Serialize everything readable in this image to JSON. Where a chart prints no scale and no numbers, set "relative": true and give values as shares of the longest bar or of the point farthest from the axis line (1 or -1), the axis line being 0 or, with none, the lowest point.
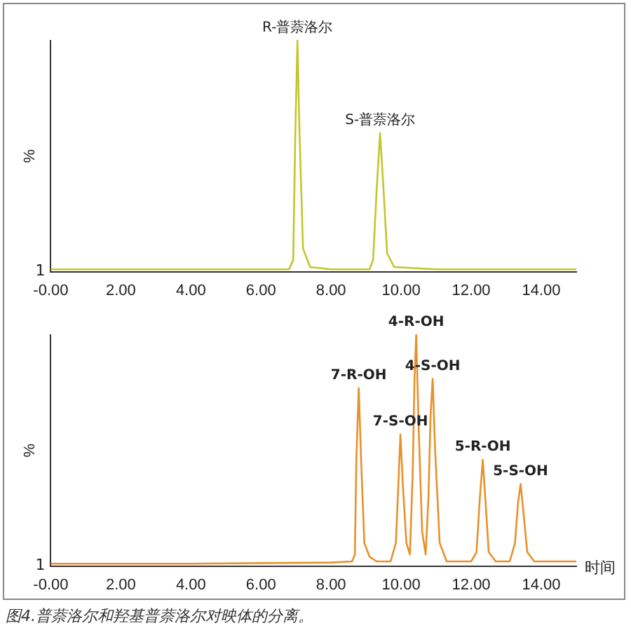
{
  "chart_data": [
    {
      "type": "line",
      "relative": true,
      "ylabel": "%",
      "xlim": [
        0,
        15
      ],
      "xticks": [
        {
          "value": 0,
          "label": "-0.00"
        },
        {
          "value": 2,
          "label": "2.00"
        },
        {
          "value": 4,
          "label": "4.00"
        },
        {
          "value": 6,
          "label": "6.00"
        },
        {
          "value": 8,
          "label": "8.00"
        },
        {
          "value": 10,
          "label": "10.00"
        },
        {
          "value": 12,
          "label": "12.00"
        },
        {
          "value": 14,
          "label": "14.00"
        }
      ],
      "grid": false,
      "legend": false,
      "marker": "none",
      "series": [
        {
          "color": "#c2c62c",
          "x": [
            0,
            2,
            4,
            6,
            6.8,
            6.92,
            6.98,
            7.04,
            7.1,
            7.2,
            7.4,
            8,
            9.1,
            9.2,
            9.3,
            9.4,
            9.5,
            9.6,
            9.8,
            11,
            13,
            15
          ],
          "values": [
            0.01,
            0.01,
            0.01,
            0.01,
            0.01,
            0.05,
            0.6,
            1,
            0.6,
            0.1,
            0.02,
            0.01,
            0.01,
            0.05,
            0.35,
            0.6,
            0.35,
            0.08,
            0.02,
            0.01,
            0.01,
            0.01
          ]
        }
      ],
      "annotations": [
        "1",
        {
          "text": "R-普萘洛尔",
          "x": 7.04,
          "y": 1
        },
        {
          "text": "S-普萘洛尔",
          "x": 9.4,
          "y": 0.6
        }
      ]
    },
    {
      "type": "line",
      "relative": true,
      "ylabel": "%",
      "xlabel": "时间",
      "xlim": [
        0,
        15
      ],
      "xticks": [
        {
          "value": 0,
          "label": "-0.00"
        },
        {
          "value": 2,
          "label": "2.00"
        },
        {
          "value": 4,
          "label": "4.00"
        },
        {
          "value": 6,
          "label": "6.00"
        },
        {
          "value": 8,
          "label": "8.00"
        },
        {
          "value": 10,
          "label": "10.00"
        },
        {
          "value": 12,
          "label": "12.00"
        },
        {
          "value": 14,
          "label": "14.00"
        }
      ],
      "grid": false,
      "legend": false,
      "marker": "none",
      "series": [
        {
          "color": "#e8902a",
          "x": [
            0,
            4,
            8,
            8.6,
            8.68,
            8.72,
            8.79,
            8.86,
            8.95,
            9.1,
            9.3,
            9.7,
            9.85,
            9.92,
            9.98,
            10.05,
            10.15,
            10.25,
            10.33,
            10.38,
            10.43,
            10.5,
            10.6,
            10.7,
            10.78,
            10.84,
            10.9,
            10.97,
            11.1,
            11.3,
            12,
            12.15,
            12.25,
            12.33,
            12.4,
            12.5,
            12.7,
            13.1,
            13.25,
            13.34,
            13.41,
            13.48,
            13.6,
            13.8,
            15
          ],
          "values": [
            0.01,
            0.01,
            0.015,
            0.02,
            0.05,
            0.45,
            0.77,
            0.45,
            0.1,
            0.04,
            0.02,
            0.02,
            0.1,
            0.35,
            0.57,
            0.35,
            0.1,
            0.05,
            0.4,
            0.8,
            1,
            0.6,
            0.15,
            0.05,
            0.3,
            0.65,
            0.81,
            0.5,
            0.1,
            0.02,
            0.02,
            0.06,
            0.3,
            0.46,
            0.3,
            0.06,
            0.02,
            0.02,
            0.1,
            0.28,
            0.355,
            0.25,
            0.06,
            0.02,
            0.02
          ]
        }
      ],
      "annotations": [
        "1",
        {
          "text": "7-R-OH",
          "x": 8.79,
          "y": 0.77
        },
        {
          "text": "7-S-OH",
          "x": 9.98,
          "y": 0.57
        },
        {
          "text": "4-R-OH",
          "x": 10.43,
          "y": 1
        },
        {
          "text": "4-S-OH",
          "x": 10.9,
          "y": 0.81
        },
        {
          "text": "5-R-OH",
          "x": 12.33,
          "y": 0.46
        },
        {
          "text": "5-S-OH",
          "x": 13.41,
          "y": 0.355
        },
        "图4.普萘洛尔和羟基普萘洛尔对映体的分离。"
      ]
    }
  ]
}
